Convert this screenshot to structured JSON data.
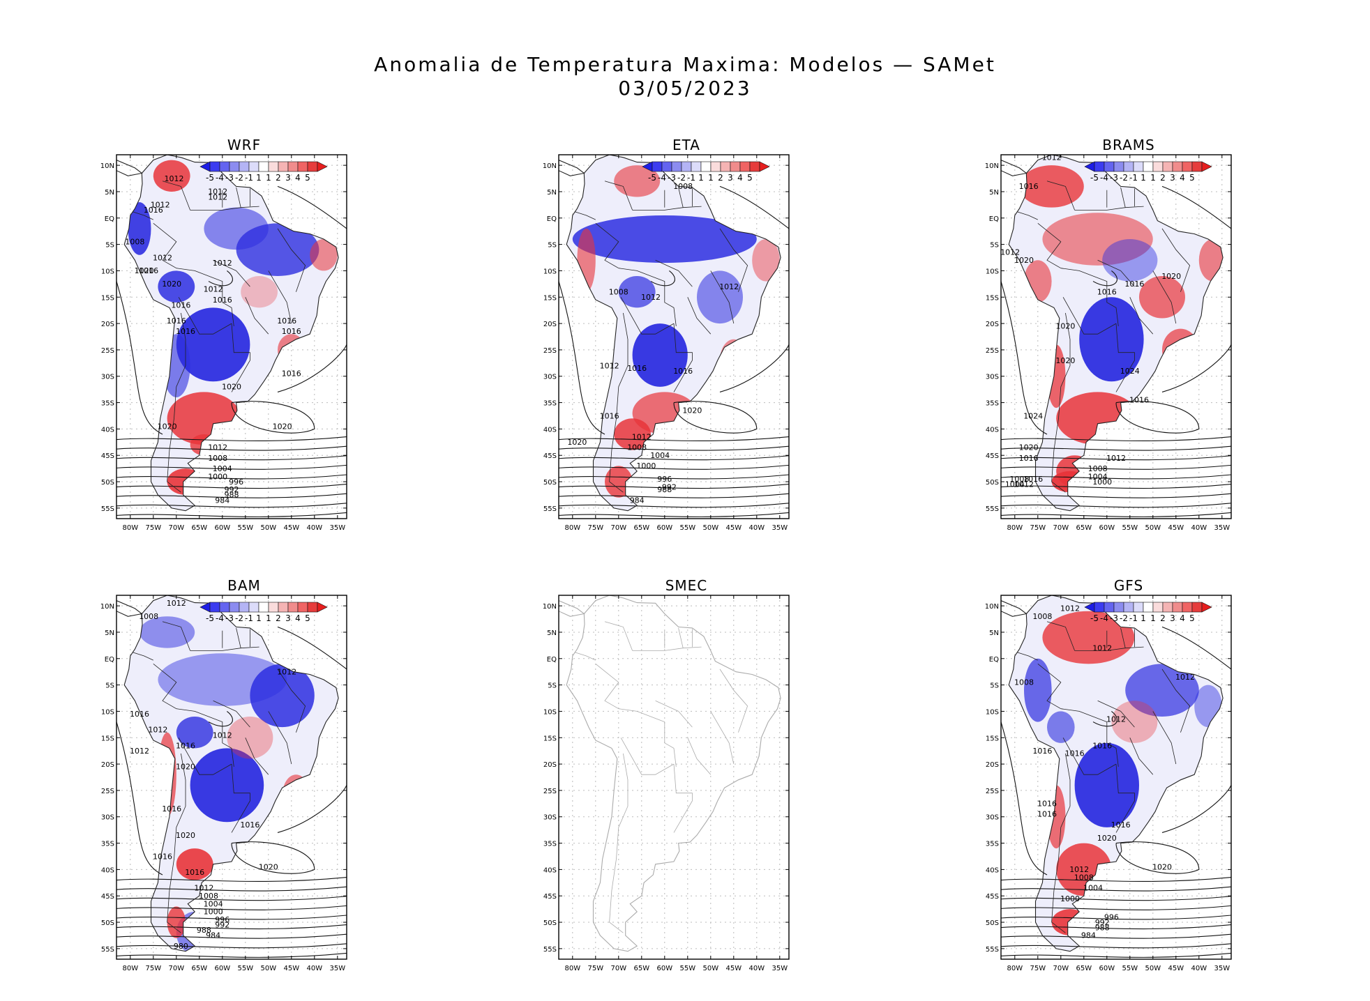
{
  "header": {
    "title": "Anomalia de Temperatura Maxima: Modelos — SAMet",
    "date": "03/05/2023"
  },
  "axes": {
    "lat_labels": [
      "10N",
      "5N",
      "EQ",
      "5S",
      "10S",
      "15S",
      "20S",
      "25S",
      "30S",
      "35S",
      "40S",
      "45S",
      "50S",
      "55S"
    ],
    "lon_labels": [
      "80W",
      "75W",
      "70W",
      "65W",
      "60W",
      "55W",
      "50W",
      "45W",
      "40W",
      "35W"
    ]
  },
  "colorbar": {
    "labels": [
      "-5",
      "-4",
      "-3",
      "-2",
      "-1",
      "1",
      "1",
      "2",
      "3",
      "4",
      "5"
    ],
    "colors": [
      "#1e1ee6",
      "#3c3cf0",
      "#6464f0",
      "#8c8cf0",
      "#b4b4f5",
      "#dcdcfa",
      "#ffffff",
      "#fadcdc",
      "#f5b4b4",
      "#f08c8c",
      "#f06464",
      "#e63c3c",
      "#e61e1e"
    ]
  },
  "colors": {
    "warm": "#e8343a",
    "cool": "#2d2ee0",
    "coast": "#222222",
    "smec_coast": "#aaaaaa"
  },
  "panels": [
    {
      "id": "wrf",
      "title": "WRF",
      "has_data": true,
      "isobars": [
        "1012",
        "1012",
        "1012",
        "1012",
        "1016",
        "1008",
        "1012",
        "1020",
        "1016",
        "1020",
        "1012",
        "1012",
        "1016",
        "1016",
        "1016",
        "1016",
        "1016",
        "1016",
        "1020",
        "1020",
        "1016",
        "1020",
        "1012",
        "1008",
        "1004",
        "1000",
        "996",
        "992",
        "988",
        "984"
      ]
    },
    {
      "id": "eta",
      "title": "ETA",
      "has_data": true,
      "isobars": [
        "1008",
        "1008",
        "1012",
        "1012",
        "1012",
        "1016",
        "1016",
        "1020",
        "1016",
        "1020",
        "1012",
        "1008",
        "1004",
        "1000",
        "996",
        "992",
        "988",
        "984"
      ]
    },
    {
      "id": "brams",
      "title": "BRAMS",
      "has_data": true,
      "isobars": [
        "1012",
        "1016",
        "1012",
        "1020",
        "1016",
        "1016",
        "1020",
        "1020",
        "1020",
        "1024",
        "1016",
        "1024",
        "1020",
        "1016",
        "1012",
        "1008",
        "1016",
        "1012",
        "1008",
        "1004",
        "1004",
        "1000"
      ]
    },
    {
      "id": "bam",
      "title": "BAM",
      "has_data": true,
      "isobars": [
        "1012",
        "1008",
        "1012",
        "1016",
        "1012",
        "1012",
        "1016",
        "1012",
        "1020",
        "1016",
        "1016",
        "1020",
        "1016",
        "1016",
        "1020",
        "1012",
        "1008",
        "1004",
        "1000",
        "996",
        "992",
        "988",
        "984",
        "980"
      ]
    },
    {
      "id": "smec",
      "title": "SMEC",
      "has_data": false,
      "isobars": []
    },
    {
      "id": "gfs",
      "title": "GFS",
      "has_data": true,
      "isobars": [
        "1012",
        "1008",
        "1012",
        "1008",
        "1012",
        "1012",
        "1016",
        "1016",
        "1016",
        "1016",
        "1016",
        "1016",
        "1020",
        "1020",
        "1012",
        "1008",
        "1004",
        "1000",
        "996",
        "992",
        "988",
        "984"
      ]
    }
  ]
}
